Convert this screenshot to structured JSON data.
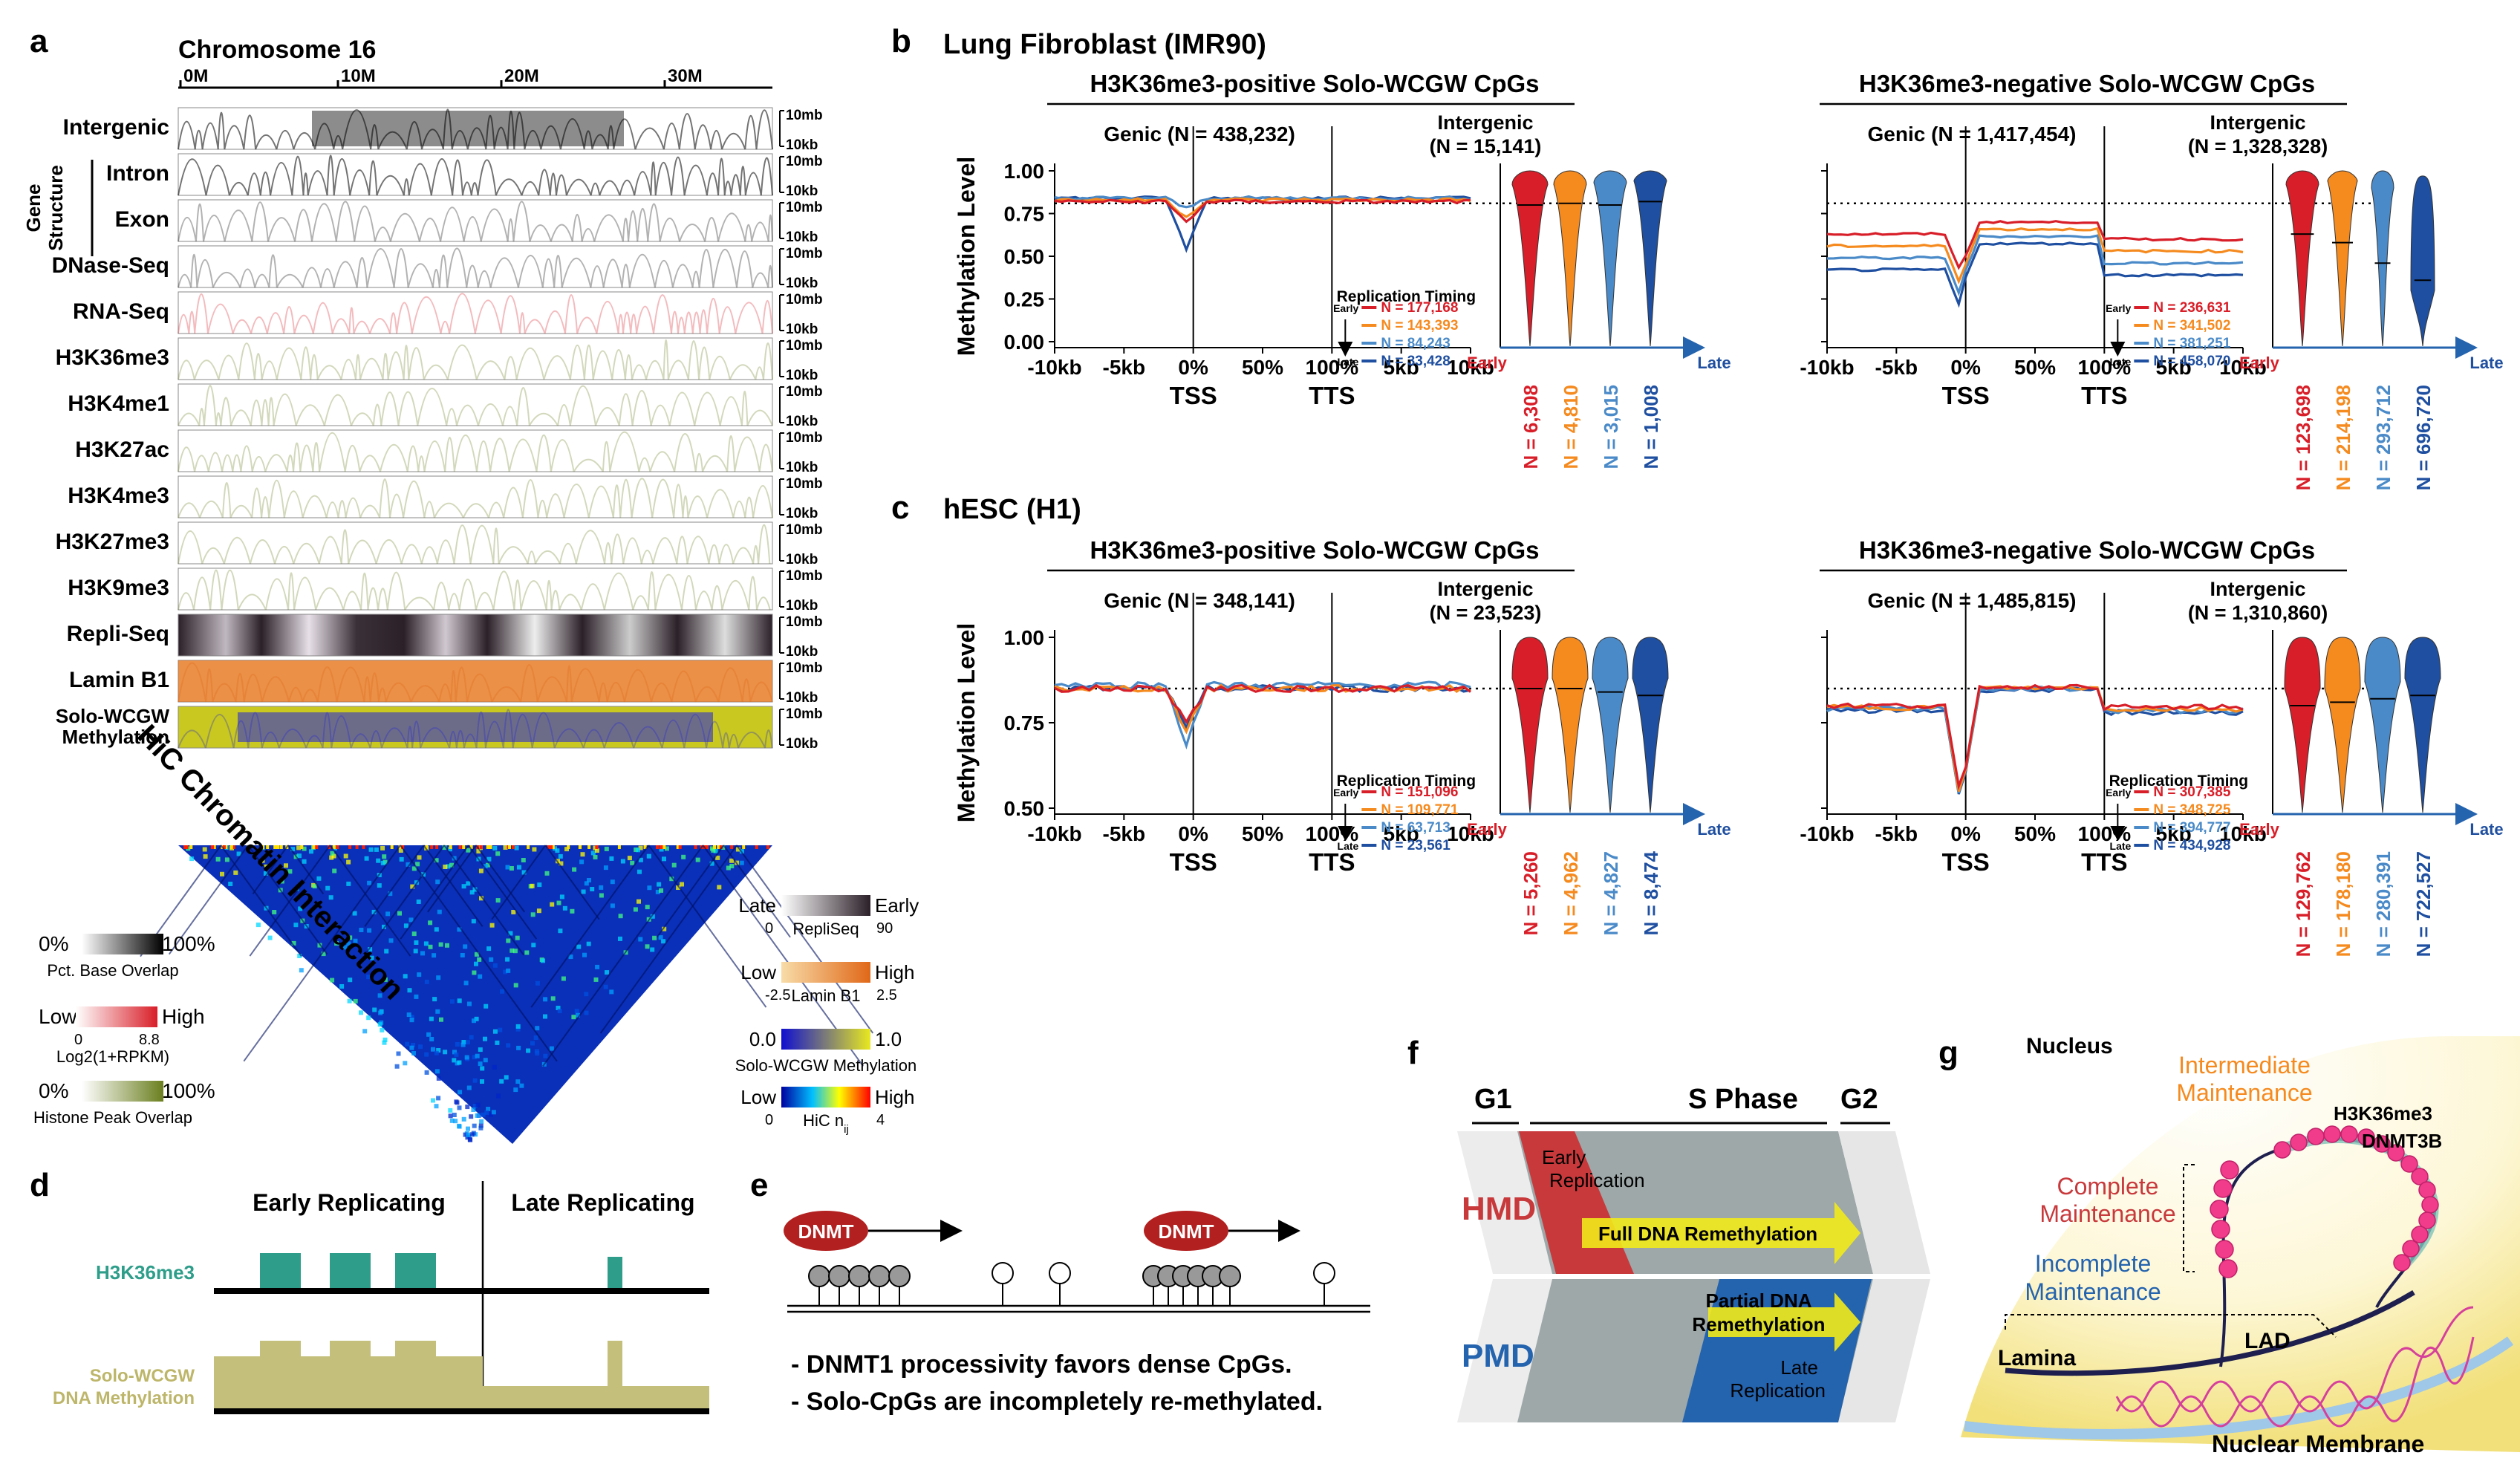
{
  "panel_letters": [
    "a",
    "b",
    "c",
    "d",
    "e",
    "f",
    "g"
  ],
  "panel_a": {
    "title": "Chromosome 16",
    "ticks": [
      "0M",
      "10M",
      "20M",
      "30M"
    ],
    "tracks": [
      {
        "label": "Intergenic",
        "color": "#000000",
        "bg": "#ffffff"
      },
      {
        "label": "Intron",
        "color": "#000000",
        "bg": "#ffffff"
      },
      {
        "label": "Exon",
        "color": "#000000",
        "bg": "#ffffff"
      },
      {
        "label": "DNase-Seq",
        "color": "#000000",
        "bg": "#ffffff"
      },
      {
        "label": "RNA-Seq",
        "color": "#d81e28",
        "bg": "#ffffff"
      },
      {
        "label": "H3K36me3",
        "color": "#6b7f1f",
        "bg": "#ffffff"
      },
      {
        "label": "H3K4me1",
        "color": "#6b7f1f",
        "bg": "#ffffff"
      },
      {
        "label": "H3K27ac",
        "color": "#6b7f1f",
        "bg": "#ffffff"
      },
      {
        "label": "H3K4me3",
        "color": "#6b7f1f",
        "bg": "#ffffff"
      },
      {
        "label": "H3K27me3",
        "color": "#6b7f1f",
        "bg": "#ffffff"
      },
      {
        "label": "H3K9me3",
        "color": "#6b7f1f",
        "bg": "#ffffff"
      },
      {
        "label": "Repli-Seq",
        "color": "#2b2028",
        "bg": "#ffffff"
      },
      {
        "label": "Lamin B1",
        "color": "#e06818",
        "bg": "#f5c080"
      },
      {
        "label": "Solo-WCGW\nMethylation",
        "color": "#1f1fd8",
        "bg": "#c8c820"
      }
    ],
    "gene_structure_label": [
      "Gene",
      "Structure"
    ],
    "scale_top": "10mb",
    "scale_bottom": "10kb",
    "hic_label": "HiC Chromatin Interaction",
    "legends_left": [
      {
        "lo": "0%",
        "hi": "100%",
        "name": "Pct. Base Overlap",
        "colors": [
          "#ffffff",
          "#000000"
        ]
      },
      {
        "lo": "Low",
        "hi": "High",
        "lo2": "0",
        "hi2": "8.8",
        "name": "Log2(1+RPKM)",
        "colors": [
          "#ffffff",
          "#d81e28"
        ]
      },
      {
        "lo": "0%",
        "hi": "100%",
        "name": "Histone Peak Overlap",
        "colors": [
          "#ffffff",
          "#6b7f1f"
        ]
      }
    ],
    "legends_right": [
      {
        "lo": "Late",
        "hi": "Early",
        "lo2": "0",
        "hi2": "90",
        "name": "RepliSeq",
        "colors": [
          "#ffffff",
          "#2b2028"
        ]
      },
      {
        "lo": "Low",
        "hi": "High",
        "lo2": "-2.5",
        "hi2": "2.5",
        "name": "Lamin B1",
        "colors": [
          "#f8dca8",
          "#e06818"
        ]
      },
      {
        "lo": "0.0",
        "hi": "1.0",
        "name": "Solo-WCGW Methylation",
        "colors": [
          "#1010d0",
          "#e8e820"
        ]
      },
      {
        "lo": "Low",
        "hi": "High",
        "lo2": "0",
        "hi2": "4",
        "name": "HiC n",
        "sub": "ij",
        "colors": [
          "#0000a0",
          "#00c0ff",
          "#ffff00",
          "#ff0000"
        ]
      }
    ]
  },
  "panel_b": {
    "title": "Lung Fibroblast (IMR90)",
    "left": {
      "title": "H3K36me3-positive Solo-WCGW CpGs",
      "genic": "Genic (N = 438,232)",
      "intergenic": [
        "Intergenic",
        "(N = 15,141)"
      ],
      "rt_n": [
        "N = 177,168",
        "N = 143,393",
        "N = 84,243",
        "N = 33,428"
      ],
      "violin_n": [
        "N = 6,308",
        "N = 4,810",
        "N = 3,015",
        "N = 1,008"
      ]
    },
    "right": {
      "title": "H3K36me3-negative Solo-WCGW CpGs",
      "genic": "Genic (N = 1,417,454)",
      "intergenic": [
        "Intergenic",
        "(N = 1,328,328)"
      ],
      "rt_n": [
        "N = 236,631",
        "N = 341,502",
        "N = 381,251",
        "N = 458,070"
      ],
      "violin_n": [
        "N = 123,698",
        "N = 214,198",
        "N = 293,712",
        "N = 696,720"
      ]
    },
    "yticks": [
      "1.00",
      "0.75",
      "0.50",
      "0.25",
      "0.00"
    ]
  },
  "panel_c": {
    "title": "hESC (H1)",
    "left": {
      "title": "H3K36me3-positive Solo-WCGW CpGs",
      "genic": "Genic (N = 348,141)",
      "intergenic": [
        "Intergenic",
        "(N = 23,523)"
      ],
      "rt_n": [
        "N = 151,096",
        "N = 109,771",
        "N = 63,713",
        "N = 23,561"
      ],
      "violin_n": [
        "N = 5,260",
        "N = 4,962",
        "N = 4,827",
        "N = 8,474"
      ]
    },
    "right": {
      "title": "H3K36me3-negative Solo-WCGW CpGs",
      "genic": "Genic (N = 1,485,815)",
      "intergenic": [
        "Intergenic",
        "(N = 1,310,860)"
      ],
      "rt_n": [
        "N = 307,385",
        "N = 348,725",
        "N = 394,777",
        "N = 434,928"
      ],
      "violin_n": [
        "N = 129,762",
        "N = 178,180",
        "N = 280,391",
        "N = 722,527"
      ]
    },
    "yticks": [
      "1.00",
      "0.75",
      "0.50"
    ]
  },
  "profile_common": {
    "ylabel": "Methylation Level",
    "xticks": [
      "-10kb",
      "-5kb",
      "0%",
      "50%",
      "100%",
      "5kb",
      "10kb"
    ],
    "tss": "TSS",
    "tts": "TTS",
    "rt_title": "Replication Timing",
    "early": "Early",
    "late": "Late",
    "series_colors": [
      "#d81e28",
      "#f58a1f",
      "#4a8ac8",
      "#1f4fa0"
    ]
  },
  "panel_d": {
    "early": "Early Replicating",
    "late": "Late Replicating",
    "h3k36me3": "H3K36me3",
    "solo": [
      "Solo-WCGW",
      "DNA Methylation"
    ],
    "teal": "#2e9e8a",
    "olive": "#c4bf7a"
  },
  "panel_e": {
    "dnmt": "DNMT",
    "bullets": [
      "- DNMT1 processivity favors dense CpGs.",
      "- Solo-CpGs are incompletely re-methylated."
    ]
  },
  "panel_f": {
    "g1": "G1",
    "s": "S Phase",
    "g2": "G2",
    "hmd": "HMD",
    "pmd": "PMD",
    "early_rep": [
      "Early",
      "Replication"
    ],
    "late_rep": [
      "Late",
      "Replication"
    ],
    "full": "Full DNA Remethylation",
    "partial": [
      "Partial DNA",
      "Remethylation"
    ]
  },
  "panel_g": {
    "nucleus": "Nucleus",
    "intermediate": [
      "Intermediate",
      "Maintenance"
    ],
    "complete": [
      "Complete",
      "Maintenance"
    ],
    "incomplete": [
      "Incomplete",
      "Maintenance"
    ],
    "h3k36me3": "H3K36me3",
    "dnmt3b": "DNMT3B",
    "lad": "LAD",
    "lamina": "Lamina",
    "membrane": "Nuclear Membrane"
  }
}
